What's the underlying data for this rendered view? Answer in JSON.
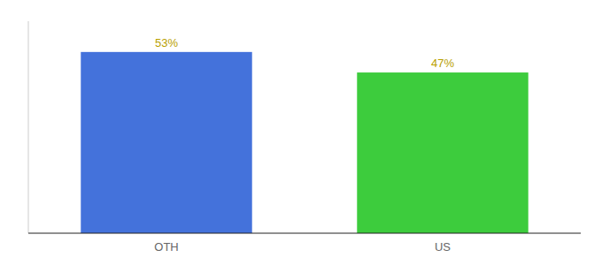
{
  "chart_data": {
    "type": "bar",
    "categories": [
      "OTH",
      "US"
    ],
    "values": [
      53,
      47
    ],
    "value_labels": [
      "53%",
      "47%"
    ],
    "colors": [
      "#4472db",
      "#3dcc3d"
    ],
    "ylim": [
      0,
      62
    ],
    "data_labels": true,
    "tick_labels": "x"
  }
}
